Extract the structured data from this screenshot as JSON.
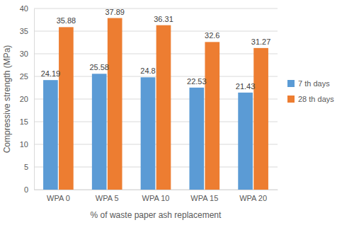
{
  "chart_data": {
    "type": "bar",
    "x_label": "% of waste paper ash replacement",
    "y_label": "Compressive strength (MPa)",
    "categories": [
      "WPA 0",
      "WPA 5",
      "WPA 10",
      "WPA 15",
      "WPA 20"
    ],
    "series": [
      {
        "name": "7 th days",
        "color": "#5b9bd5",
        "values": [
          24.19,
          25.58,
          24.8,
          22.53,
          21.43
        ]
      },
      {
        "name": "28 th days",
        "color": "#ed7d31",
        "values": [
          35.88,
          37.89,
          36.31,
          32.6,
          31.27
        ]
      }
    ],
    "ylim": [
      0,
      40
    ],
    "yticks": [
      0,
      5,
      10,
      15,
      20,
      25,
      30,
      35,
      40
    ],
    "grid": true,
    "legend": "right",
    "data_labels": true
  }
}
